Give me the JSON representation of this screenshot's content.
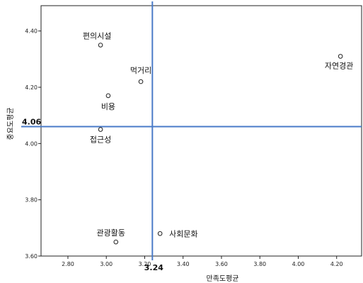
{
  "chart_data": {
    "type": "scatter",
    "xlabel": "만족도평균",
    "ylabel": "중요도평균",
    "xlim": [
      2.66,
      4.33
    ],
    "ylim": [
      3.6,
      4.49
    ],
    "xticks": [
      "2.80",
      "3.00",
      "3.20",
      "3.40",
      "3.60",
      "3.80",
      "4.00",
      "4.20"
    ],
    "yticks": [
      "3.60",
      "3.80",
      "4.00",
      "4.20",
      "4.40"
    ],
    "grid": false,
    "points": [
      {
        "label": "편의시설",
        "x": 2.97,
        "y": 4.35
      },
      {
        "label": "자연경관",
        "x": 4.22,
        "y": 4.31
      },
      {
        "label": "먹거리",
        "x": 3.18,
        "y": 4.22
      },
      {
        "label": "비용",
        "x": 3.01,
        "y": 4.17
      },
      {
        "label": "접근성",
        "x": 2.97,
        "y": 4.05
      },
      {
        "label": "사회문화",
        "x": 3.28,
        "y": 3.68
      },
      {
        "label": "관광활동",
        "x": 3.05,
        "y": 3.65
      }
    ],
    "reference_lines": {
      "x": 3.24,
      "x_label": "3.24",
      "y": 4.06,
      "y_label": "4.06",
      "color": "#4a7bc8"
    }
  }
}
